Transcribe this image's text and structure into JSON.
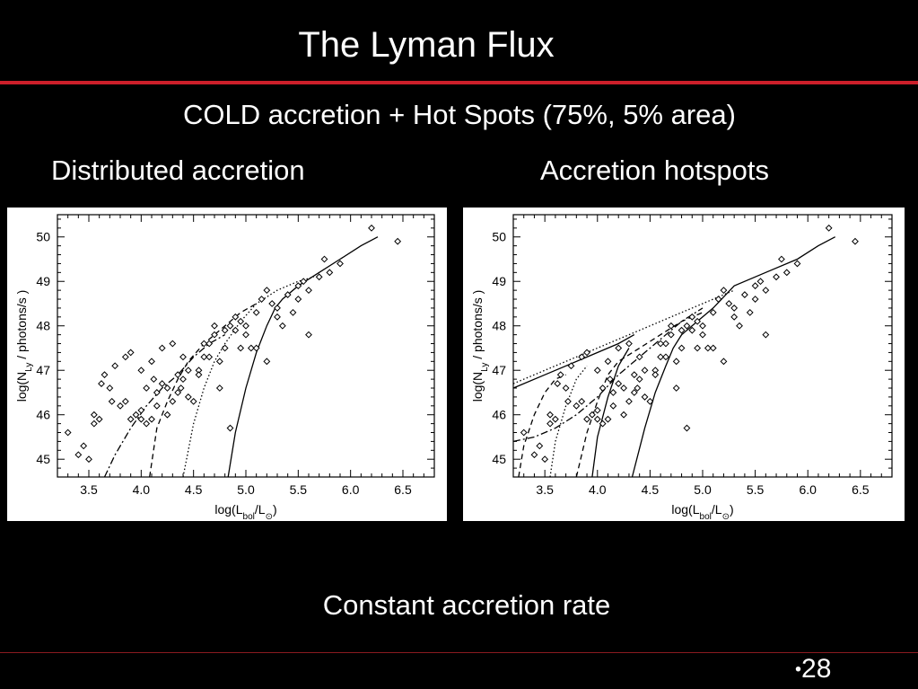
{
  "slide": {
    "title": "The Lyman Flux",
    "subtitle": "COLD accretion + Hot Spots (75%, 5% area)",
    "left_label": "Distributed accretion",
    "right_label": "Accretion hotspots",
    "caption": "Constant accretion rate",
    "page_number": "28"
  },
  "colors": {
    "background": "#000000",
    "rule": "#cc1f2a",
    "panel": "#ffffff",
    "ink": "#000000"
  },
  "chart_data": [
    {
      "type": "scatter",
      "title": "",
      "xlabel": "log(L_bol/L_⊙)",
      "ylabel": "log(N_Ly / photons/s )",
      "xlim": [
        3.2,
        6.8
      ],
      "ylim": [
        44.6,
        50.5
      ],
      "xticks": [
        "3.5",
        "4.0",
        "4.5",
        "5.0",
        "5.5",
        "6.0",
        "6.5"
      ],
      "yticks": [
        "45",
        "46",
        "47",
        "48",
        "49",
        "50"
      ],
      "points": [
        [
          3.3,
          45.6
        ],
        [
          3.4,
          45.1
        ],
        [
          3.5,
          45.0
        ],
        [
          3.45,
          45.3
        ],
        [
          3.55,
          45.8
        ],
        [
          3.6,
          45.9
        ],
        [
          3.55,
          46.0
        ],
        [
          3.65,
          46.9
        ],
        [
          3.7,
          46.6
        ],
        [
          3.62,
          46.7
        ],
        [
          3.72,
          46.3
        ],
        [
          3.8,
          46.2
        ],
        [
          3.85,
          46.3
        ],
        [
          3.9,
          45.9
        ],
        [
          3.95,
          46.0
        ],
        [
          4.0,
          46.1
        ],
        [
          4.05,
          45.8
        ],
        [
          4.1,
          45.9
        ],
        [
          4.15,
          46.5
        ],
        [
          4.2,
          46.7
        ],
        [
          4.25,
          46.0
        ],
        [
          4.3,
          46.3
        ],
        [
          4.35,
          46.5
        ],
        [
          4.4,
          46.8
        ],
        [
          4.45,
          47.0
        ],
        [
          4.5,
          46.3
        ],
        [
          4.55,
          47.0
        ],
        [
          4.6,
          47.3
        ],
        [
          4.65,
          47.6
        ],
        [
          4.7,
          47.8
        ],
        [
          4.75,
          47.2
        ],
        [
          4.8,
          47.5
        ],
        [
          4.85,
          48.0
        ],
        [
          4.9,
          47.9
        ],
        [
          4.95,
          48.1
        ],
        [
          5.0,
          48.0
        ],
        [
          5.05,
          47.5
        ],
        [
          5.1,
          48.3
        ],
        [
          5.15,
          48.6
        ],
        [
          5.2,
          48.8
        ],
        [
          5.25,
          48.5
        ],
        [
          5.3,
          48.2
        ],
        [
          5.35,
          48.0
        ],
        [
          5.4,
          48.7
        ],
        [
          5.45,
          48.3
        ],
        [
          5.5,
          48.9
        ],
        [
          5.55,
          49.0
        ],
        [
          5.6,
          48.8
        ],
        [
          5.7,
          49.1
        ],
        [
          5.8,
          49.2
        ],
        [
          5.9,
          49.4
        ],
        [
          4.0,
          47.0
        ],
        [
          4.1,
          47.2
        ],
        [
          3.9,
          47.4
        ],
        [
          4.2,
          47.5
        ],
        [
          4.3,
          47.6
        ],
        [
          4.4,
          47.3
        ],
        [
          3.85,
          47.3
        ],
        [
          4.05,
          46.6
        ],
        [
          4.15,
          46.2
        ],
        [
          4.25,
          46.6
        ],
        [
          4.35,
          46.9
        ],
        [
          4.45,
          46.4
        ],
        [
          4.6,
          47.6
        ],
        [
          4.7,
          48.0
        ],
        [
          4.8,
          47.9
        ],
        [
          4.95,
          47.5
        ],
        [
          5.0,
          47.8
        ],
        [
          5.1,
          47.5
        ],
        [
          5.2,
          47.2
        ],
        [
          5.3,
          48.4
        ],
        [
          4.9,
          48.2
        ],
        [
          4.85,
          45.7
        ],
        [
          5.6,
          47.8
        ],
        [
          5.5,
          48.6
        ],
        [
          6.2,
          50.2
        ],
        [
          6.45,
          49.9
        ],
        [
          5.75,
          49.5
        ],
        [
          4.55,
          46.9
        ],
        [
          4.75,
          46.6
        ],
        [
          4.65,
          47.3
        ],
        [
          3.75,
          47.1
        ],
        [
          4.0,
          45.9
        ],
        [
          4.12,
          46.8
        ],
        [
          4.38,
          46.6
        ]
      ],
      "curves": [
        {
          "style": "solid",
          "x": [
            4.83,
            4.9,
            5.0,
            5.1,
            5.2,
            5.28,
            5.35,
            5.5,
            5.7,
            5.9,
            6.1,
            6.26
          ],
          "y": [
            44.6,
            45.6,
            46.6,
            47.4,
            48.0,
            48.4,
            48.6,
            48.9,
            49.2,
            49.5,
            49.8,
            50.0
          ]
        },
        {
          "style": "dotted",
          "x": [
            4.4,
            4.5,
            4.6,
            4.7,
            4.8,
            4.95,
            5.1,
            5.3,
            5.5,
            5.65
          ],
          "y": [
            44.6,
            45.8,
            46.6,
            47.2,
            47.6,
            48.1,
            48.5,
            48.8,
            49.0,
            49.1
          ]
        },
        {
          "style": "dashed",
          "x": [
            4.08,
            4.15,
            4.25,
            4.35,
            4.45,
            4.6,
            4.75,
            4.95,
            5.1
          ],
          "y": [
            44.6,
            45.7,
            46.3,
            46.8,
            47.2,
            47.6,
            47.9,
            48.3,
            48.5
          ]
        },
        {
          "style": "dashdot",
          "x": [
            3.65,
            3.75,
            3.9,
            4.05,
            4.2,
            4.35,
            4.5,
            4.65,
            4.8
          ],
          "y": [
            44.6,
            45.1,
            45.7,
            46.2,
            46.6,
            46.9,
            47.3,
            47.6,
            47.8
          ]
        }
      ]
    },
    {
      "type": "scatter",
      "title": "",
      "xlabel": "log(L_bol/L_⊙)",
      "ylabel": "log(N_Ly / photons/s )",
      "xlim": [
        3.2,
        6.8
      ],
      "ylim": [
        44.6,
        50.5
      ],
      "xticks": [
        "3.5",
        "4.0",
        "4.5",
        "5.0",
        "5.5",
        "6.0",
        "6.5"
      ],
      "yticks": [
        "45",
        "46",
        "47",
        "48",
        "49",
        "50"
      ],
      "points": [
        [
          3.3,
          45.6
        ],
        [
          3.4,
          45.1
        ],
        [
          3.5,
          45.0
        ],
        [
          3.45,
          45.3
        ],
        [
          3.55,
          45.8
        ],
        [
          3.6,
          45.9
        ],
        [
          3.55,
          46.0
        ],
        [
          3.65,
          46.9
        ],
        [
          3.7,
          46.6
        ],
        [
          3.62,
          46.7
        ],
        [
          3.72,
          46.3
        ],
        [
          3.8,
          46.2
        ],
        [
          3.85,
          46.3
        ],
        [
          3.9,
          45.9
        ],
        [
          3.95,
          46.0
        ],
        [
          4.0,
          46.1
        ],
        [
          4.05,
          45.8
        ],
        [
          4.1,
          45.9
        ],
        [
          4.15,
          46.5
        ],
        [
          4.2,
          46.7
        ],
        [
          4.25,
          46.0
        ],
        [
          4.3,
          46.3
        ],
        [
          4.35,
          46.5
        ],
        [
          4.4,
          46.8
        ],
        [
          4.45,
          47.0
        ],
        [
          4.5,
          46.3
        ],
        [
          4.55,
          47.0
        ],
        [
          4.6,
          47.3
        ],
        [
          4.65,
          47.6
        ],
        [
          4.7,
          47.8
        ],
        [
          4.75,
          47.2
        ],
        [
          4.8,
          47.5
        ],
        [
          4.85,
          48.0
        ],
        [
          4.9,
          47.9
        ],
        [
          4.95,
          48.1
        ],
        [
          5.0,
          48.0
        ],
        [
          5.05,
          47.5
        ],
        [
          5.1,
          48.3
        ],
        [
          5.15,
          48.6
        ],
        [
          5.2,
          48.8
        ],
        [
          5.25,
          48.5
        ],
        [
          5.3,
          48.2
        ],
        [
          5.35,
          48.0
        ],
        [
          5.4,
          48.7
        ],
        [
          5.45,
          48.3
        ],
        [
          5.5,
          48.9
        ],
        [
          5.55,
          49.0
        ],
        [
          5.6,
          48.8
        ],
        [
          5.7,
          49.1
        ],
        [
          5.8,
          49.2
        ],
        [
          5.9,
          49.4
        ],
        [
          4.0,
          47.0
        ],
        [
          4.1,
          47.2
        ],
        [
          3.9,
          47.4
        ],
        [
          4.2,
          47.5
        ],
        [
          4.3,
          47.6
        ],
        [
          4.4,
          47.3
        ],
        [
          3.85,
          47.3
        ],
        [
          4.05,
          46.6
        ],
        [
          4.15,
          46.2
        ],
        [
          4.25,
          46.6
        ],
        [
          4.35,
          46.9
        ],
        [
          4.45,
          46.4
        ],
        [
          4.6,
          47.6
        ],
        [
          4.7,
          48.0
        ],
        [
          4.8,
          47.9
        ],
        [
          4.95,
          47.5
        ],
        [
          5.0,
          47.8
        ],
        [
          5.1,
          47.5
        ],
        [
          5.2,
          47.2
        ],
        [
          5.3,
          48.4
        ],
        [
          4.9,
          48.2
        ],
        [
          4.85,
          45.7
        ],
        [
          5.6,
          47.8
        ],
        [
          5.5,
          48.6
        ],
        [
          6.2,
          50.2
        ],
        [
          6.45,
          49.9
        ],
        [
          5.75,
          49.5
        ],
        [
          4.55,
          46.9
        ],
        [
          4.75,
          46.6
        ],
        [
          4.65,
          47.3
        ],
        [
          3.75,
          47.1
        ],
        [
          4.0,
          45.9
        ],
        [
          4.12,
          46.8
        ],
        [
          4.38,
          46.6
        ]
      ],
      "curves": [
        {
          "style": "solid",
          "x": [
            4.33,
            4.45,
            4.55,
            4.65,
            4.72,
            4.8,
            4.95,
            5.1,
            5.3,
            5.6,
            5.9,
            6.1,
            6.26
          ],
          "y": [
            44.6,
            45.7,
            46.5,
            47.1,
            47.5,
            47.8,
            48.1,
            48.4,
            48.9,
            49.2,
            49.5,
            49.8,
            50.0
          ]
        },
        {
          "style": "solid",
          "x": [
            3.95,
            4.0,
            4.1,
            4.2,
            4.3
          ],
          "y": [
            44.6,
            45.5,
            46.4,
            47.1,
            47.5
          ]
        },
        {
          "style": "solid",
          "x": [
            3.2,
            3.5,
            3.9,
            4.2,
            4.35
          ],
          "y": [
            46.6,
            46.9,
            47.3,
            47.6,
            47.8
          ]
        },
        {
          "style": "dotted",
          "x": [
            3.2,
            3.5,
            3.8,
            4.1,
            4.4,
            4.7,
            5.0,
            5.3
          ],
          "y": [
            46.7,
            47.0,
            47.3,
            47.6,
            47.9,
            48.2,
            48.5,
            48.8
          ]
        },
        {
          "style": "dotted",
          "x": [
            3.55,
            3.6,
            3.7,
            3.8,
            3.9
          ],
          "y": [
            44.6,
            45.4,
            46.2,
            46.8,
            47.1
          ]
        },
        {
          "style": "dashed",
          "x": [
            3.25,
            3.3,
            3.4,
            3.5,
            3.6,
            3.7
          ],
          "y": [
            44.6,
            45.3,
            46.0,
            46.5,
            46.8,
            46.9
          ]
        },
        {
          "style": "dashed",
          "x": [
            3.8,
            3.9,
            4.0,
            4.1,
            4.2,
            4.4,
            4.6,
            4.8,
            5.0
          ],
          "y": [
            44.6,
            45.6,
            46.3,
            46.9,
            47.2,
            47.5,
            47.8,
            48.1,
            48.3
          ]
        },
        {
          "style": "dashdot",
          "x": [
            3.2,
            3.4,
            3.6,
            3.8,
            4.0,
            4.2,
            4.4,
            4.6,
            4.8,
            5.0
          ],
          "y": [
            45.4,
            45.5,
            45.7,
            46.0,
            46.4,
            46.9,
            47.3,
            47.7,
            48.1,
            48.4
          ]
        }
      ]
    }
  ]
}
